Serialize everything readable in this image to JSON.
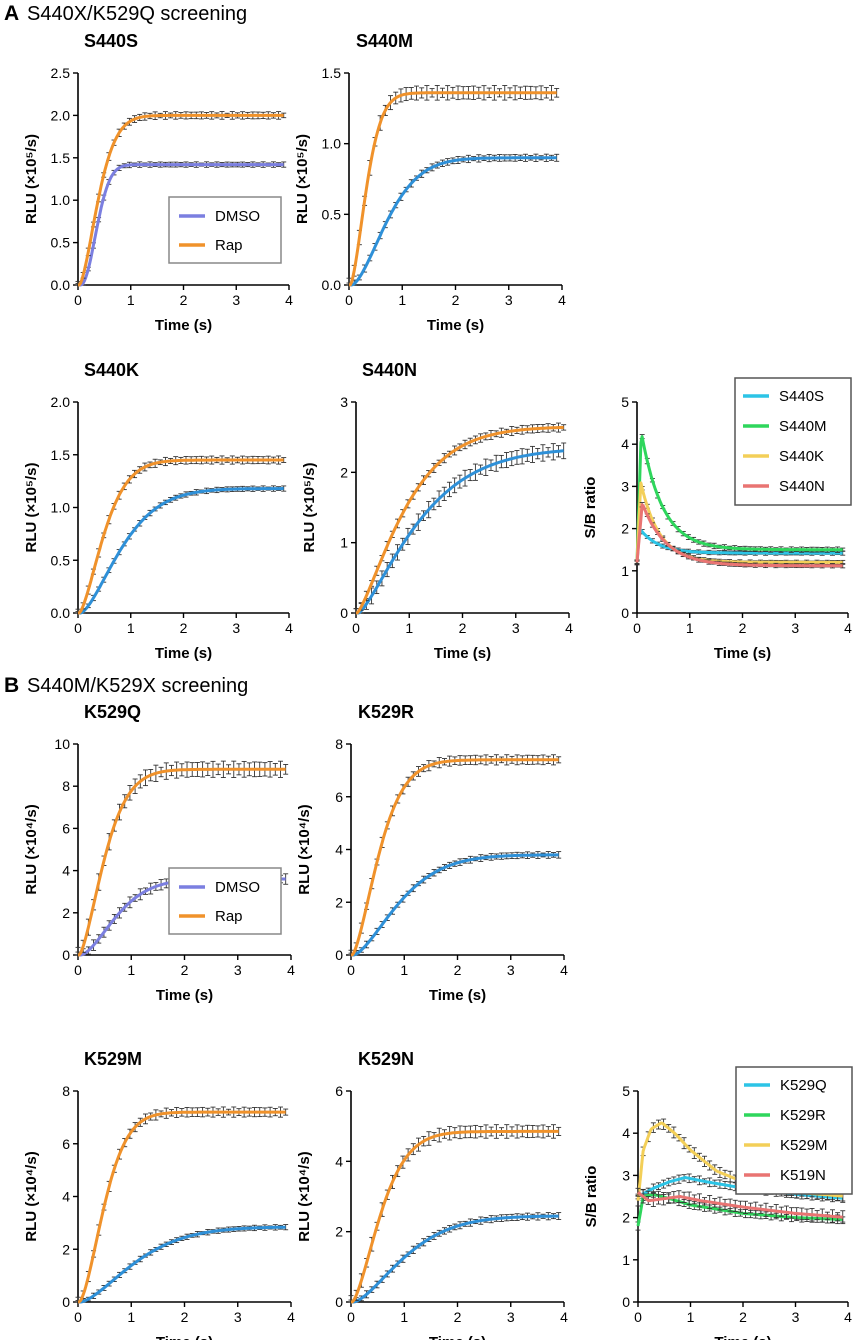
{
  "panels": [
    {
      "letter": "A",
      "title": "S440X/K529Q screening"
    },
    {
      "letter": "B",
      "title": "S440M/K529X screening"
    }
  ],
  "chart_data": [
    {
      "id": "a1",
      "type": "line",
      "title": "S440S",
      "xlabel": "Time (s)",
      "ylabel": "RLU (×10⁵/s)",
      "xlim": [
        0,
        4
      ],
      "ylim": [
        0,
        2.5
      ],
      "xticks": [
        0,
        1,
        2,
        3,
        4
      ],
      "xtick_labels": [
        "0",
        "1",
        "2",
        "3",
        "4"
      ],
      "yticks": [
        0,
        0.5,
        1.0,
        1.5,
        2.0,
        2.5
      ],
      "ytick_labels": [
        "0.0",
        "0.5",
        "1.0",
        "1.5",
        "2.0",
        "2.5"
      ],
      "legend": "inside-center-right",
      "series": [
        {
          "name": "DMSO",
          "color": "#7b7fe0",
          "final": 1.42,
          "k": 2.6,
          "shape": 2,
          "err": 0.025,
          "x0": 0.05
        },
        {
          "name": "Rap",
          "color": "#f0922b",
          "final": 2.0,
          "k": 2.2,
          "shape": 1.6,
          "err": 0.035,
          "x0": 0.02
        }
      ]
    },
    {
      "id": "a2",
      "type": "line",
      "title": "S440M",
      "xlabel": "Time (s)",
      "ylabel": "RLU (×10⁵/s)",
      "xlim": [
        0,
        4
      ],
      "ylim": [
        0,
        1.5
      ],
      "xticks": [
        0,
        1,
        2,
        3,
        4
      ],
      "xtick_labels": [
        "0",
        "1",
        "2",
        "3",
        "4"
      ],
      "yticks": [
        0,
        0.5,
        1.0,
        1.5
      ],
      "ytick_labels": [
        "0.0",
        "0.5",
        "1.0",
        "1.5"
      ],
      "series": [
        {
          "name": "DMSO",
          "color": "#2e90d8",
          "final": 0.9,
          "k": 1.2,
          "shape": 1.6,
          "err": 0.02,
          "x0": 0.05
        },
        {
          "name": "Rap",
          "color": "#f0922b",
          "final": 1.36,
          "k": 2.6,
          "shape": 1.6,
          "err": 0.04,
          "x0": 0.02
        }
      ]
    },
    {
      "id": "a3",
      "type": "line",
      "title": "S440K",
      "xlabel": "Time (s)",
      "ylabel": "RLU (×10⁵/s)",
      "xlim": [
        0,
        4
      ],
      "ylim": [
        0,
        2.0
      ],
      "xticks": [
        0,
        1,
        2,
        3,
        4
      ],
      "xtick_labels": [
        "0",
        "1",
        "2",
        "3",
        "4"
      ],
      "yticks": [
        0,
        0.5,
        1.0,
        1.5,
        2.0
      ],
      "ytick_labels": [
        "0.0",
        "0.5",
        "1.0",
        "1.5",
        "2.0"
      ],
      "series": [
        {
          "name": "DMSO",
          "color": "#2e90d8",
          "final": 1.18,
          "k": 1.05,
          "shape": 1.5,
          "err": 0.02,
          "x0": 0.05
        },
        {
          "name": "Rap",
          "color": "#f0922b",
          "final": 1.45,
          "k": 1.7,
          "shape": 1.5,
          "err": 0.03,
          "x0": 0.02
        }
      ]
    },
    {
      "id": "a4",
      "type": "line",
      "title": "S440N",
      "xlabel": "Time (s)",
      "ylabel": "RLU (×10⁵/s)",
      "xlim": [
        0,
        4
      ],
      "ylim": [
        0,
        3
      ],
      "xticks": [
        0,
        1,
        2,
        3,
        4
      ],
      "xtick_labels": [
        "0",
        "1",
        "2",
        "3",
        "4"
      ],
      "yticks": [
        0,
        1,
        2,
        3
      ],
      "ytick_labels": [
        "0",
        "1",
        "2",
        "3"
      ],
      "series": [
        {
          "name": "DMSO",
          "color": "#2e90d8",
          "final": 2.35,
          "k": 0.75,
          "shape": 1.3,
          "err": 0.09,
          "x0": 0.05
        },
        {
          "name": "Rap",
          "color": "#f0922b",
          "final": 2.65,
          "k": 0.95,
          "shape": 1.3,
          "err": 0.05,
          "x0": 0.02
        }
      ]
    },
    {
      "id": "a5",
      "type": "line",
      "title": "",
      "xlabel": "Time (s)",
      "ylabel": "S/B ratio",
      "xlim": [
        0,
        4
      ],
      "ylim": [
        0,
        5
      ],
      "xticks": [
        0,
        1,
        2,
        3,
        4
      ],
      "xtick_labels": [
        "0",
        "1",
        "2",
        "3",
        "4"
      ],
      "yticks": [
        0,
        1,
        2,
        3,
        4,
        5
      ],
      "ytick_labels": [
        "0",
        "1",
        "2",
        "3",
        "4",
        "5"
      ],
      "legend": "top-right",
      "series": [
        {
          "name": "S440S",
          "color": "#2cc4e6",
          "peak_x": 0.05,
          "peak": 2.0,
          "end": 1.42,
          "tau": 0.35,
          "err": 0.04
        },
        {
          "name": "S440M",
          "color": "#2ed65c",
          "peak_x": 0.08,
          "peak": 4.3,
          "end": 1.5,
          "tau": 0.4,
          "err": 0.05
        },
        {
          "name": "S440K",
          "color": "#f3cf58",
          "peak_x": 0.07,
          "peak": 3.1,
          "end": 1.2,
          "tau": 0.35,
          "err": 0.04
        },
        {
          "name": "S440N",
          "color": "#e97472",
          "peak_x": 0.1,
          "peak": 2.6,
          "end": 1.12,
          "tau": 0.45,
          "err": 0.04
        }
      ]
    },
    {
      "id": "b1",
      "type": "line",
      "title": "K529Q",
      "xlabel": "Time (s)",
      "ylabel": "RLU (×10⁴/s)",
      "xlim": [
        0,
        4
      ],
      "ylim": [
        0,
        10
      ],
      "xticks": [
        0,
        1,
        2,
        3,
        4
      ],
      "xtick_labels": [
        "0",
        "1",
        "2",
        "3",
        "4"
      ],
      "yticks": [
        0,
        2,
        4,
        6,
        8,
        10
      ],
      "ytick_labels": [
        "0",
        "2",
        "4",
        "6",
        "8",
        "10"
      ],
      "legend": "inside-center-right",
      "series": [
        {
          "name": "DMSO",
          "color": "#7b7fe0",
          "final": 3.6,
          "k": 1.2,
          "shape": 1.6,
          "err": 0.2,
          "x0": 0.05
        },
        {
          "name": "Rap",
          "color": "#f0922b",
          "final": 8.8,
          "k": 1.7,
          "shape": 1.5,
          "err": 0.3,
          "x0": 0.02
        }
      ]
    },
    {
      "id": "b2",
      "type": "line",
      "title": "K529R",
      "xlabel": "Time (s)",
      "ylabel": "RLU (×10⁴/s)",
      "xlim": [
        0,
        4
      ],
      "ylim": [
        0,
        8
      ],
      "xticks": [
        0,
        1,
        2,
        3,
        4
      ],
      "xtick_labels": [
        "0",
        "1",
        "2",
        "3",
        "4"
      ],
      "yticks": [
        0,
        2,
        4,
        6,
        8
      ],
      "ytick_labels": [
        "0",
        "2",
        "4",
        "6",
        "8"
      ],
      "series": [
        {
          "name": "DMSO",
          "color": "#2e90d8",
          "final": 3.8,
          "k": 0.95,
          "shape": 1.5,
          "err": 0.1,
          "x0": 0.05
        },
        {
          "name": "Rap",
          "color": "#f0922b",
          "final": 7.4,
          "k": 1.6,
          "shape": 1.5,
          "err": 0.15,
          "x0": 0.02
        }
      ]
    },
    {
      "id": "b3",
      "type": "line",
      "title": "K529M",
      "xlabel": "Time (s)",
      "ylabel": "RLU (×10⁴/s)",
      "xlim": [
        0,
        4
      ],
      "ylim": [
        0,
        8
      ],
      "xticks": [
        0,
        1,
        2,
        3,
        4
      ],
      "xtick_labels": [
        "0",
        "1",
        "2",
        "3",
        "4"
      ],
      "yticks": [
        0,
        2,
        4,
        6,
        8
      ],
      "ytick_labels": [
        "0",
        "2",
        "4",
        "6",
        "8"
      ],
      "series": [
        {
          "name": "DMSO",
          "color": "#2e90d8",
          "final": 2.85,
          "k": 0.8,
          "shape": 1.5,
          "err": 0.08,
          "x0": 0.05
        },
        {
          "name": "Rap",
          "color": "#f0922b",
          "final": 7.2,
          "k": 1.7,
          "shape": 1.6,
          "err": 0.15,
          "x0": 0.02
        }
      ]
    },
    {
      "id": "b4",
      "type": "line",
      "title": "K529N",
      "xlabel": "Time (s)",
      "ylabel": "RLU (×10⁴/s)",
      "xlim": [
        0,
        4
      ],
      "ylim": [
        0,
        6
      ],
      "xticks": [
        0,
        1,
        2,
        3,
        4
      ],
      "xtick_labels": [
        "0",
        "1",
        "2",
        "3",
        "4"
      ],
      "yticks": [
        0,
        2,
        4,
        6
      ],
      "ytick_labels": [
        "0",
        "2",
        "4",
        "6"
      ],
      "series": [
        {
          "name": "DMSO",
          "color": "#2e90d8",
          "final": 2.45,
          "k": 0.85,
          "shape": 1.5,
          "err": 0.08,
          "x0": 0.05
        },
        {
          "name": "Rap",
          "color": "#f0922b",
          "final": 4.85,
          "k": 1.5,
          "shape": 1.5,
          "err": 0.15,
          "x0": 0.02
        }
      ]
    },
    {
      "id": "b5",
      "type": "line",
      "title": "",
      "xlabel": "Time (s)",
      "ylabel": "S/B ratio",
      "xlim": [
        0,
        4
      ],
      "ylim": [
        0,
        5
      ],
      "xticks": [
        0,
        1,
        2,
        3,
        4
      ],
      "xtick_labels": [
        "0",
        "1",
        "2",
        "3",
        "4"
      ],
      "yticks": [
        0,
        1,
        2,
        3,
        4,
        5
      ],
      "ytick_labels": [
        "0",
        "1",
        "2",
        "3",
        "4",
        "5"
      ],
      "legend": "top-right",
      "series": [
        {
          "name": "K529Q",
          "color": "#2cc4e6",
          "points": [
            [
              0,
              2.5
            ],
            [
              0.3,
              2.7
            ],
            [
              0.6,
              2.85
            ],
            [
              0.9,
              2.95
            ],
            [
              1.3,
              2.85
            ],
            [
              2,
              2.7
            ],
            [
              3,
              2.55
            ],
            [
              4,
              2.45
            ]
          ],
          "err": 0.08
        },
        {
          "name": "K529R",
          "color": "#2ed65c",
          "points": [
            [
              0,
              1.8
            ],
            [
              0.1,
              2.5
            ],
            [
              0.3,
              2.55
            ],
            [
              0.6,
              2.45
            ],
            [
              1.0,
              2.3
            ],
            [
              2,
              2.1
            ],
            [
              3,
              2.0
            ],
            [
              4,
              1.95
            ]
          ],
          "err": 0.08
        },
        {
          "name": "K529M",
          "color": "#f3cf58",
          "points": [
            [
              0,
              2.4
            ],
            [
              0.1,
              3.6
            ],
            [
              0.25,
              4.1
            ],
            [
              0.45,
              4.25
            ],
            [
              0.7,
              4.0
            ],
            [
              1.0,
              3.6
            ],
            [
              1.5,
              3.1
            ],
            [
              2,
              2.85
            ],
            [
              3,
              2.6
            ],
            [
              4,
              2.5
            ]
          ],
          "err": 0.1
        },
        {
          "name": "K519N",
          "color": "#e97472",
          "points": [
            [
              0,
              2.6
            ],
            [
              0.2,
              2.4
            ],
            [
              0.5,
              2.45
            ],
            [
              0.8,
              2.5
            ],
            [
              1.2,
              2.4
            ],
            [
              2,
              2.25
            ],
            [
              3,
              2.1
            ],
            [
              4,
              2.0
            ]
          ],
          "err": 0.12
        }
      ]
    }
  ]
}
